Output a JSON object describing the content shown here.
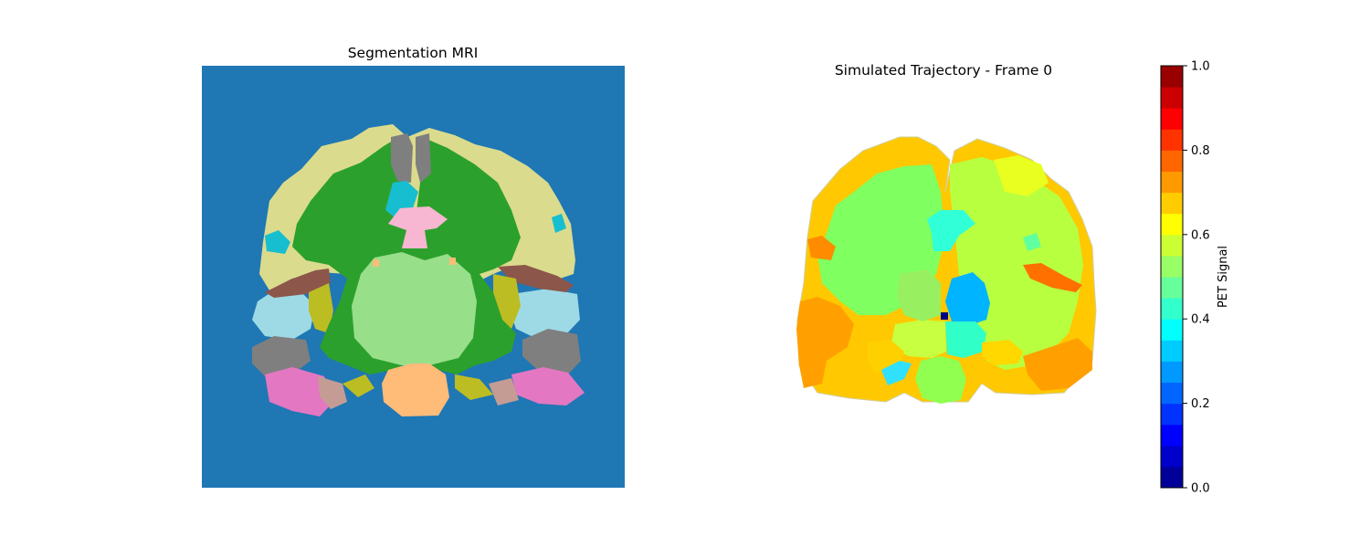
{
  "figure": {
    "left_title": "Segmentation MRI",
    "right_title": "Simulated Trajectory - Frame 0"
  },
  "chart_data": [
    {
      "type": "heatmap",
      "title": "Segmentation MRI",
      "description_kind": "categorical segmentation image",
      "background_color": "#1f77b4",
      "region_colors": [
        "#2ca02c",
        "#dbdb8d",
        "#98df8a",
        "#ffbb78",
        "#7f7f7f",
        "#e377c2",
        "#c49c94",
        "#bcbd22",
        "#9edae5",
        "#8c564b",
        "#17becf",
        "#f7b6d2"
      ],
      "axes": "off"
    },
    {
      "type": "heatmap",
      "title": "Simulated Trajectory - Frame 0",
      "colormap": "jet",
      "colormap_bins": 20,
      "vmin": 0.0,
      "vmax": 1.0,
      "colorbar": {
        "label": "PET Signal",
        "ticks": [
          0.0,
          0.2,
          0.4,
          0.6,
          0.8,
          1.0
        ],
        "tick_labels": [
          "0.0",
          "0.2",
          "0.4",
          "0.6",
          "0.8",
          "1.0"
        ]
      },
      "region_values": {
        "white_matter_left": 0.52,
        "white_matter_right": 0.6,
        "cortex_outer": 0.72,
        "cortex_lateral": 0.76,
        "thalamus_left": 0.62,
        "thalamus_right": 0.32,
        "brainstem": 0.55,
        "ventricle_area": 0.42,
        "hippocampus_left": 0.36,
        "lesion_point": 0.1
      },
      "axes": "off"
    }
  ]
}
